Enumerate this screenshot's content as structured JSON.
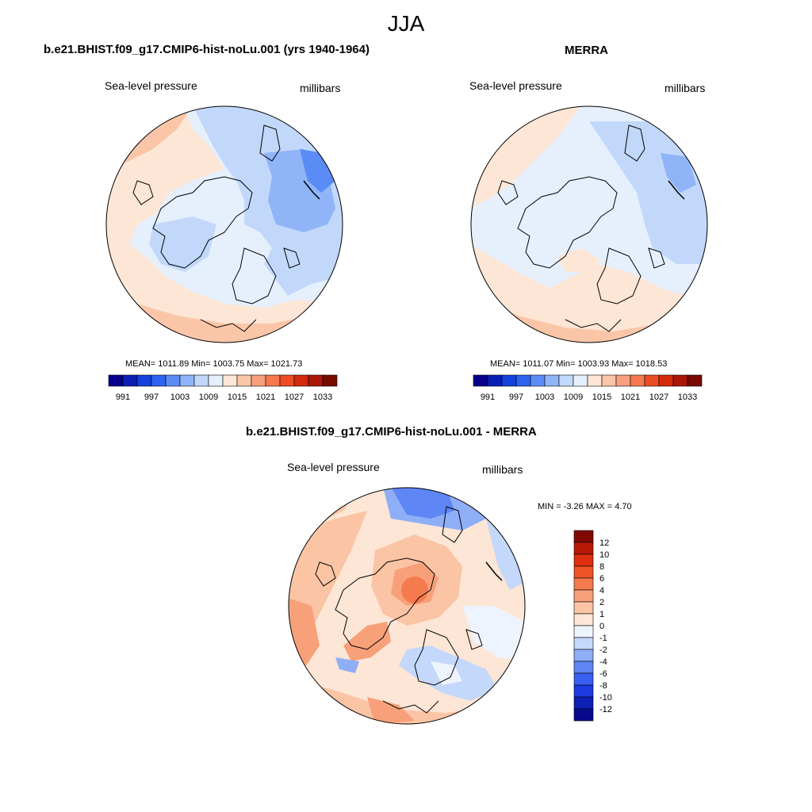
{
  "page": {
    "title": "JJA"
  },
  "panels": {
    "model": {
      "title": "b.e21.BHIST.f09_g17.CMIP6-hist-noLu.001 (yrs 1940-1964)",
      "left_label": "Sea-level pressure",
      "right_label": "millibars",
      "stats": "MEAN= 1011.89  Min= 1003.75  Max= 1021.73"
    },
    "obs": {
      "title": "MERRA",
      "left_label": "Sea-level pressure",
      "right_label": "millibars",
      "stats": "MEAN= 1011.07  Min= 1003.93  Max= 1018.53"
    },
    "diff": {
      "title": "b.e21.BHIST.f09_g17.CMIP6-hist-noLu.001 - MERRA",
      "left_label": "Sea-level pressure",
      "right_label": "millibars",
      "stats": "MIN =  -3.26 MAX =   4.70"
    }
  },
  "colorbars": {
    "abs": {
      "colors": [
        "#08008c",
        "#0a1fb4",
        "#1541dc",
        "#2f63f0",
        "#5b8cf5",
        "#90b4f8",
        "#c2d8fb",
        "#e6f0fd",
        "#fde6d6",
        "#fbc6a8",
        "#f8a07e",
        "#f5784f",
        "#ec4c22",
        "#d42a0c",
        "#aa1707",
        "#780a00"
      ],
      "tick_labels": [
        "991",
        "997",
        "1003",
        "1009",
        "1015",
        "1021",
        "1027",
        "1033"
      ]
    },
    "diff": {
      "colors": [
        "#080a8c",
        "#0d1fb4",
        "#1c3ae0",
        "#3a5ff2",
        "#5f86f5",
        "#8eaef7",
        "#c4d8fb",
        "#eef4fe",
        "#fde6d6",
        "#fbc4a4",
        "#f8a07a",
        "#f57a4e",
        "#ee5428",
        "#de3010",
        "#b81a07",
        "#820900"
      ],
      "tick_labels": [
        "12",
        "10",
        "8",
        "6",
        "4",
        "2",
        "1",
        "0",
        "-1",
        "-2",
        "-4",
        "-6",
        "-8",
        "-10",
        "-12"
      ]
    }
  }
}
